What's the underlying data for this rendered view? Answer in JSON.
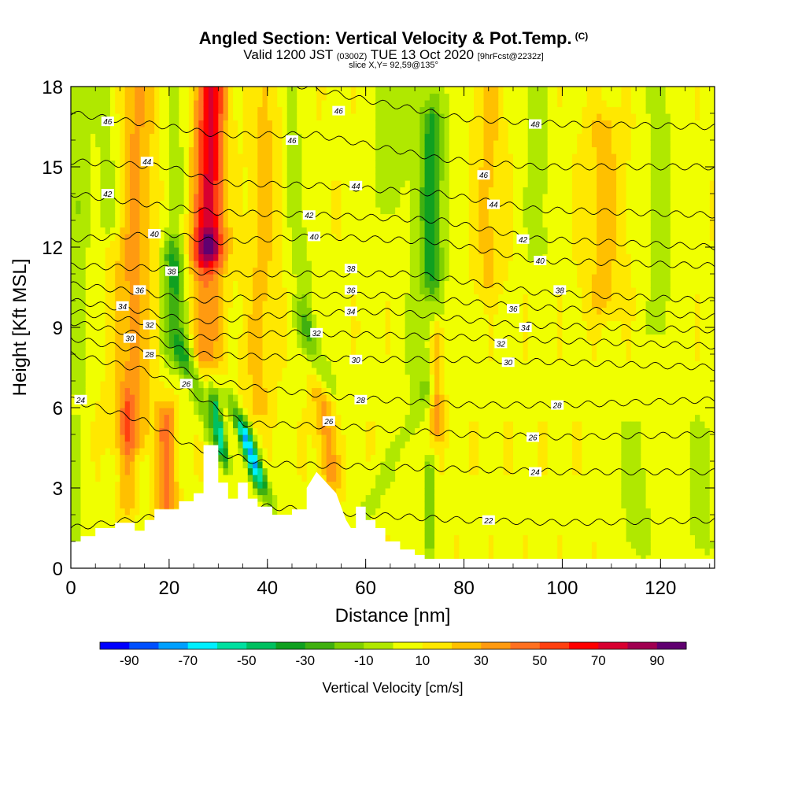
{
  "chart_data": {
    "type": "heatmap",
    "title": "Angled Section: Vertical Velocity & Pot.Temp.",
    "title_units": "(C)",
    "subtitle": {
      "prefix": "Valid 1200 JST",
      "utc": "(0300Z)",
      "date": "TUE 13 Oct 2020",
      "forecast": "[9hrFcst@2232z]"
    },
    "slice_text": "slice X,Y= 92,59@135°",
    "xlabel": "Distance [nm]",
    "ylabel": "Height [Kft MSL]",
    "xlim": [
      0,
      131
    ],
    "ylim": [
      0,
      18
    ],
    "x_ticks": [
      0,
      20,
      40,
      60,
      80,
      100,
      120
    ],
    "y_ticks": [
      0,
      3,
      6,
      9,
      12,
      15,
      18
    ],
    "colorbar": {
      "title": "Vertical Velocity [cm/s]",
      "min": -100,
      "max": 100,
      "step": 10,
      "tick_labels": [
        "-90",
        "-70",
        "-50",
        "-30",
        "-10",
        "10",
        "30",
        "50",
        "70",
        "90"
      ],
      "colors": [
        "#0000ff",
        "#0050ff",
        "#00a0ff",
        "#00f0ff",
        "#00e0a0",
        "#00c060",
        "#10a020",
        "#40b010",
        "#80d000",
        "#b0e800",
        "#f0ff00",
        "#ffe800",
        "#ffc000",
        "#ff9a10",
        "#ff7020",
        "#ff4010",
        "#ff0000",
        "#d80030",
        "#a00050",
        "#600070"
      ]
    },
    "terrain": [
      [
        0,
        1.0
      ],
      [
        2,
        1.0
      ],
      [
        2,
        1.2
      ],
      [
        5,
        1.2
      ],
      [
        5,
        1.5
      ],
      [
        9,
        1.5
      ],
      [
        9,
        1.7
      ],
      [
        13,
        1.7
      ],
      [
        13,
        1.4
      ],
      [
        15,
        1.4
      ],
      [
        15,
        1.8
      ],
      [
        17,
        1.8
      ],
      [
        17,
        2.2
      ],
      [
        22,
        2.2
      ],
      [
        22,
        2.5
      ],
      [
        25,
        2.5
      ],
      [
        25,
        2.8
      ],
      [
        27,
        2.8
      ],
      [
        27,
        4.6
      ],
      [
        30,
        4.6
      ],
      [
        30,
        3.2
      ],
      [
        32,
        3.2
      ],
      [
        32,
        2.6
      ],
      [
        34,
        2.6
      ],
      [
        34,
        3.2
      ],
      [
        36,
        3.2
      ],
      [
        36,
        2.6
      ],
      [
        38,
        2.6
      ],
      [
        38,
        2.3
      ],
      [
        41,
        2.3
      ],
      [
        41,
        2.0
      ],
      [
        45,
        2.0
      ],
      [
        45,
        2.2
      ],
      [
        48,
        2.2
      ],
      [
        48,
        3.0
      ],
      [
        50,
        3.6
      ],
      [
        52,
        3.2
      ],
      [
        54,
        2.8
      ],
      [
        55,
        2.3
      ],
      [
        56,
        1.8
      ],
      [
        57,
        1.5
      ],
      [
        58,
        1.5
      ],
      [
        58,
        2.3
      ],
      [
        60,
        2.3
      ],
      [
        60,
        1.8
      ],
      [
        62,
        1.8
      ],
      [
        62,
        1.5
      ],
      [
        64,
        1.5
      ],
      [
        64,
        1.0
      ],
      [
        67,
        1.0
      ],
      [
        67,
        0.7
      ],
      [
        70,
        0.7
      ],
      [
        70,
        0.5
      ],
      [
        72,
        0.5
      ],
      [
        72,
        0.35
      ],
      [
        131,
        0.35
      ]
    ],
    "theta_contours": [
      {
        "value": 22,
        "levels": [
          [
            0,
            1.5
          ],
          [
            20,
            2.0
          ],
          [
            40,
            2.3
          ],
          [
            60,
            2.0
          ],
          [
            80,
            1.8
          ],
          [
            100,
            1.7
          ],
          [
            131,
            1.8
          ]
        ]
      },
      {
        "value": 24,
        "levels": [
          [
            0,
            6.3
          ],
          [
            15,
            5.5
          ],
          [
            25,
            4.5
          ],
          [
            40,
            3.9
          ],
          [
            60,
            3.8
          ],
          [
            80,
            3.7
          ],
          [
            100,
            3.6
          ],
          [
            131,
            3.6
          ]
        ]
      },
      {
        "value": 26,
        "levels": [
          [
            0,
            8.0
          ],
          [
            15,
            7.4
          ],
          [
            25,
            6.5
          ],
          [
            35,
            5.4
          ],
          [
            55,
            5.3
          ],
          [
            80,
            5.0
          ],
          [
            100,
            4.9
          ],
          [
            131,
            5.0
          ]
        ]
      },
      {
        "value": 28,
        "levels": [
          [
            0,
            8.6
          ],
          [
            15,
            8.1
          ],
          [
            25,
            7.2
          ],
          [
            35,
            6.8
          ],
          [
            55,
            6.4
          ],
          [
            80,
            6.1
          ],
          [
            100,
            6.1
          ],
          [
            131,
            6.3
          ]
        ]
      },
      {
        "value": 30,
        "levels": [
          [
            0,
            9.2
          ],
          [
            15,
            8.7
          ],
          [
            25,
            8.0
          ],
          [
            40,
            7.9
          ],
          [
            60,
            7.8
          ],
          [
            80,
            7.8
          ],
          [
            100,
            7.7
          ],
          [
            131,
            7.5
          ]
        ]
      },
      {
        "value": 32,
        "levels": [
          [
            0,
            9.6
          ],
          [
            15,
            9.2
          ],
          [
            25,
            8.6
          ],
          [
            45,
            8.8
          ],
          [
            65,
            8.7
          ],
          [
            85,
            8.6
          ],
          [
            131,
            8.3
          ]
        ]
      },
      {
        "value": 34,
        "levels": [
          [
            0,
            10.0
          ],
          [
            15,
            9.6
          ],
          [
            25,
            9.2
          ],
          [
            45,
            9.5
          ],
          [
            65,
            9.6
          ],
          [
            90,
            9.1
          ],
          [
            131,
            8.9
          ]
        ]
      },
      {
        "value": 36,
        "levels": [
          [
            0,
            10.6
          ],
          [
            15,
            10.3
          ],
          [
            25,
            10.0
          ],
          [
            45,
            10.2
          ],
          [
            65,
            10.2
          ],
          [
            90,
            9.8
          ],
          [
            131,
            9.4
          ]
        ]
      },
      {
        "value": 38,
        "levels": [
          [
            0,
            11.3
          ],
          [
            20,
            11.2
          ],
          [
            30,
            11.0
          ],
          [
            50,
            11.0
          ],
          [
            70,
            11.0
          ],
          [
            95,
            10.3
          ],
          [
            131,
            10.0
          ]
        ]
      },
      {
        "value": 40,
        "levels": [
          [
            0,
            12.3
          ],
          [
            20,
            12.5
          ],
          [
            30,
            12.2
          ],
          [
            50,
            12.4
          ],
          [
            75,
            12.2
          ],
          [
            95,
            11.5
          ],
          [
            131,
            11.3
          ]
        ]
      },
      {
        "value": 42,
        "levels": [
          [
            0,
            14.0
          ],
          [
            20,
            13.5
          ],
          [
            30,
            13.3
          ],
          [
            50,
            13.2
          ],
          [
            75,
            13.0
          ],
          [
            95,
            12.3
          ],
          [
            131,
            12.0
          ]
        ]
      },
      {
        "value": 44,
        "levels": [
          [
            0,
            15.2
          ],
          [
            20,
            15.0
          ],
          [
            30,
            14.4
          ],
          [
            50,
            14.3
          ],
          [
            75,
            14.0
          ],
          [
            95,
            13.4
          ],
          [
            131,
            13.2
          ]
        ]
      },
      {
        "value": 46,
        "levels": [
          [
            0,
            17.0
          ],
          [
            20,
            16.5
          ],
          [
            30,
            16.2
          ],
          [
            50,
            16.2
          ],
          [
            75,
            15.3
          ],
          [
            95,
            15.0
          ],
          [
            131,
            15.0
          ]
        ]
      },
      {
        "value": 48,
        "levels": [
          [
            0,
            18.5
          ],
          [
            40,
            18.3
          ],
          [
            60,
            17.5
          ],
          [
            80,
            16.8
          ],
          [
            100,
            16.6
          ],
          [
            131,
            16.5
          ]
        ]
      }
    ],
    "contour_labels": [
      {
        "text": "46",
        "x": 7.5,
        "y": 16.7
      },
      {
        "text": "44",
        "x": 15.5,
        "y": 15.2
      },
      {
        "text": "42",
        "x": 7.5,
        "y": 14.0
      },
      {
        "text": "40",
        "x": 17.0,
        "y": 12.5
      },
      {
        "text": "38",
        "x": 20.5,
        "y": 11.1
      },
      {
        "text": "36",
        "x": 14.0,
        "y": 10.4
      },
      {
        "text": "34",
        "x": 10.5,
        "y": 9.8
      },
      {
        "text": "32",
        "x": 16.0,
        "y": 9.1
      },
      {
        "text": "30",
        "x": 12.0,
        "y": 8.6
      },
      {
        "text": "28",
        "x": 16.0,
        "y": 8.0
      },
      {
        "text": "26",
        "x": 23.5,
        "y": 6.9
      },
      {
        "text": "24",
        "x": 2.0,
        "y": 6.3
      },
      {
        "text": "46",
        "x": 54.5,
        "y": 17.1
      },
      {
        "text": "46",
        "x": 45.0,
        "y": 16.0
      },
      {
        "text": "44",
        "x": 58.0,
        "y": 14.3
      },
      {
        "text": "42",
        "x": 48.5,
        "y": 13.2
      },
      {
        "text": "40",
        "x": 49.5,
        "y": 12.4
      },
      {
        "text": "38",
        "x": 57.0,
        "y": 11.2
      },
      {
        "text": "36",
        "x": 57.0,
        "y": 10.4
      },
      {
        "text": "34",
        "x": 57.0,
        "y": 9.6
      },
      {
        "text": "32",
        "x": 50.0,
        "y": 8.8
      },
      {
        "text": "30",
        "x": 58.0,
        "y": 7.8
      },
      {
        "text": "28",
        "x": 59.0,
        "y": 6.3
      },
      {
        "text": "26",
        "x": 52.5,
        "y": 5.5
      },
      {
        "text": "48",
        "x": 94.5,
        "y": 16.6
      },
      {
        "text": "46",
        "x": 84.0,
        "y": 14.7
      },
      {
        "text": "44",
        "x": 86.0,
        "y": 13.6
      },
      {
        "text": "42",
        "x": 92.0,
        "y": 12.3
      },
      {
        "text": "40",
        "x": 95.5,
        "y": 11.5
      },
      {
        "text": "38",
        "x": 99.5,
        "y": 10.4
      },
      {
        "text": "36",
        "x": 90.0,
        "y": 9.7
      },
      {
        "text": "34",
        "x": 92.5,
        "y": 9.0
      },
      {
        "text": "32",
        "x": 87.5,
        "y": 8.4
      },
      {
        "text": "30",
        "x": 89.0,
        "y": 7.7
      },
      {
        "text": "28",
        "x": 99.0,
        "y": 6.1
      },
      {
        "text": "26",
        "x": 94.0,
        "y": 4.9
      },
      {
        "text": "24",
        "x": 94.5,
        "y": 3.6
      },
      {
        "text": "22",
        "x": 85.0,
        "y": 1.8
      }
    ],
    "wind_features": [
      {
        "x0": 28.0,
        "x1": 28.5,
        "y0": 12.0,
        "y1": 18.0,
        "w": 3.0,
        "v": 65
      },
      {
        "x0": 27.0,
        "x1": 28.0,
        "y0": 8.0,
        "y1": 12.0,
        "w": 3.5,
        "v": 30
      },
      {
        "x0": 12.5,
        "x1": 13.0,
        "y0": 5.0,
        "y1": 18.0,
        "w": 4.0,
        "v": 25
      },
      {
        "x0": 19.5,
        "x1": 19.5,
        "y0": 2.5,
        "y1": 5.5,
        "w": 2.0,
        "v": 35
      },
      {
        "x0": 11.5,
        "x1": 11.5,
        "y0": 2.5,
        "y1": 6.0,
        "w": 1.5,
        "v": 20
      },
      {
        "x0": 53.0,
        "x1": 51.0,
        "y0": 3.5,
        "y1": 6.5,
        "w": 2.0,
        "v": 25
      },
      {
        "x0": 74.5,
        "x1": 74.5,
        "y0": 5.5,
        "y1": 8.5,
        "w": 1.5,
        "v": 30
      },
      {
        "x0": 85.0,
        "x1": 85.0,
        "y0": 11.0,
        "y1": 18.0,
        "w": 3.0,
        "v": 15
      },
      {
        "x0": 108.5,
        "x1": 108.5,
        "y0": 10.0,
        "y1": 16.5,
        "w": 4.0,
        "v": 15
      },
      {
        "x0": 38.0,
        "x1": 40.0,
        "y0": 6.0,
        "y1": 18.0,
        "w": 3.0,
        "v": 15
      },
      {
        "x0": 21.0,
        "x1": 23.0,
        "y0": 11.5,
        "y1": 8.0,
        "w": 2.2,
        "v": -30
      },
      {
        "x0": 20.0,
        "x1": 21.5,
        "y0": 8.0,
        "y1": 18.0,
        "w": 2.0,
        "v": -15
      },
      {
        "x0": 23.0,
        "x1": 29.0,
        "y0": 8.0,
        "y1": 5.0,
        "w": 1.8,
        "v": -25
      },
      {
        "x0": 29.5,
        "x1": 31.0,
        "y0": 6.0,
        "y1": 4.4,
        "w": 1.0,
        "v": -50
      },
      {
        "x0": 35.5,
        "x1": 37.5,
        "y0": 5.0,
        "y1": 3.7,
        "w": 1.4,
        "v": -55
      },
      {
        "x0": 33.0,
        "x1": 40.0,
        "y0": 6.0,
        "y1": 2.8,
        "w": 1.5,
        "v": -25
      },
      {
        "x0": 44.0,
        "x1": 48.0,
        "y0": 18.0,
        "y1": 9.0,
        "w": 2.0,
        "v": -15
      },
      {
        "x0": 48.0,
        "x1": 52.0,
        "y0": 9.0,
        "y1": 7.0,
        "w": 2.0,
        "v": -20
      },
      {
        "x0": 73.5,
        "x1": 73.5,
        "y0": 11.0,
        "y1": 16.5,
        "w": 2.0,
        "v": -30
      },
      {
        "x0": 72.0,
        "x1": 73.0,
        "y0": 7.0,
        "y1": 18.0,
        "w": 4.0,
        "v": -15
      },
      {
        "x0": 73.0,
        "x1": 73.0,
        "y0": 1.0,
        "y1": 3.5,
        "w": 1.2,
        "v": -25
      },
      {
        "x0": 64.0,
        "x1": 66.0,
        "y0": 14.0,
        "y1": 18.0,
        "w": 4.0,
        "v": -15
      },
      {
        "x0": 8.0,
        "x1": 8.0,
        "y0": 13.0,
        "y1": 18.0,
        "w": 3.0,
        "v": -15
      },
      {
        "x0": 1.5,
        "x1": 1.5,
        "y0": 7.0,
        "y1": 18.0,
        "w": 2.5,
        "v": -15
      },
      {
        "x0": 95.0,
        "x1": 95.0,
        "y0": 12.0,
        "y1": 18.0,
        "w": 2.5,
        "v": -15
      },
      {
        "x0": 120.0,
        "x1": 120.0,
        "y0": 9.0,
        "y1": 18.0,
        "w": 3.0,
        "v": -12
      },
      {
        "x0": 115.0,
        "x1": 115.0,
        "y0": 1.0,
        "y1": 5.0,
        "w": 4.0,
        "v": -12
      },
      {
        "x0": 128.0,
        "x1": 128.0,
        "y0": 1.0,
        "y1": 5.0,
        "w": 3.0,
        "v": -12
      },
      {
        "x0": 0.5,
        "x1": 0.5,
        "y0": 1.0,
        "y1": 5.0,
        "w": 2.0,
        "v": -15
      },
      {
        "x0": 60.0,
        "x1": 72.0,
        "y0": 2.0,
        "y1": 6.5,
        "w": 2.5,
        "v": -12
      }
    ],
    "background_velocity": 8
  }
}
